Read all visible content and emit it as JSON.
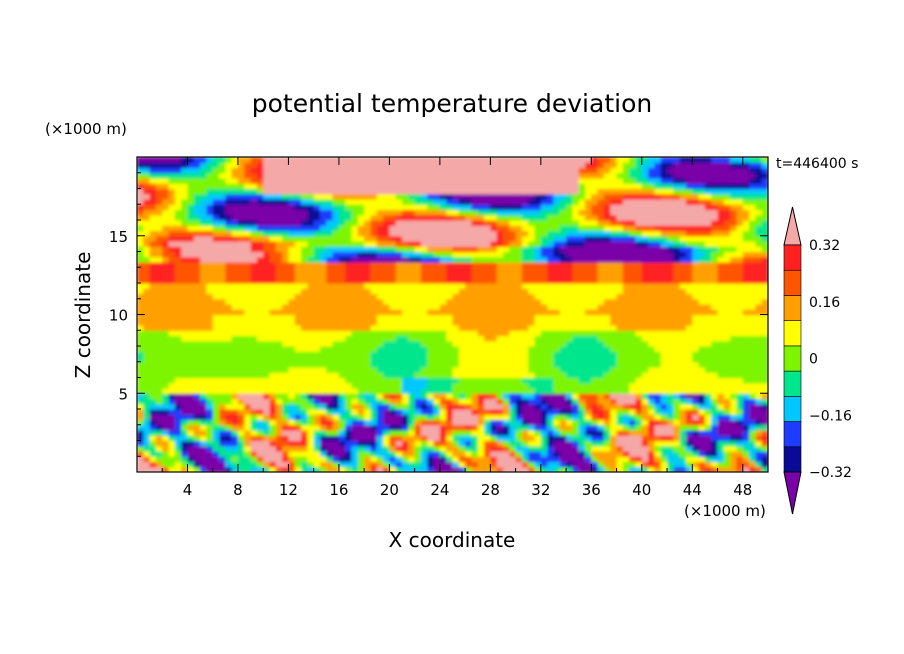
{
  "chart_data": {
    "type": "heatmap",
    "title": "potential temperature deviation",
    "xlabel": "X coordinate",
    "ylabel": "Z coordinate",
    "x_unit": "(×1000 m)",
    "y_unit": "(×1000 m)",
    "time_label": "t=446400 s",
    "xlim": [
      0,
      50
    ],
    "ylim": [
      0,
      20
    ],
    "x_ticks": [
      4,
      8,
      12,
      16,
      20,
      24,
      28,
      32,
      36,
      40,
      44,
      48
    ],
    "y_ticks": [
      5,
      10,
      15
    ],
    "colorbar": {
      "levels": [
        -0.4,
        -0.32,
        -0.24,
        -0.16,
        -0.08,
        0,
        0.08,
        0.16,
        0.24,
        0.32,
        0.4
      ],
      "tick_labels": [
        "0.32",
        "0.16",
        "0",
        "−0.16",
        "−0.32"
      ],
      "tick_values": [
        0.32,
        0.16,
        0,
        -0.16,
        -0.32
      ],
      "colors_low_to_high": [
        "#7a00a8",
        "#0a0a96",
        "#1e3cff",
        "#00c8ff",
        "#00e68c",
        "#7df500",
        "#ffff00",
        "#ffa000",
        "#ff5500",
        "#ff2020",
        "#f5a8a8"
      ],
      "extend": "both"
    },
    "regions": [
      {
        "z": [
          0,
          5
        ],
        "description_value": -0.1
      },
      {
        "z": [
          5,
          12
        ],
        "description_value": 0.04
      },
      {
        "z": [
          12,
          13.5
        ],
        "description_value": 0.2
      },
      {
        "z": [
          13.5,
          20
        ],
        "description_value": 0.3
      }
    ]
  }
}
